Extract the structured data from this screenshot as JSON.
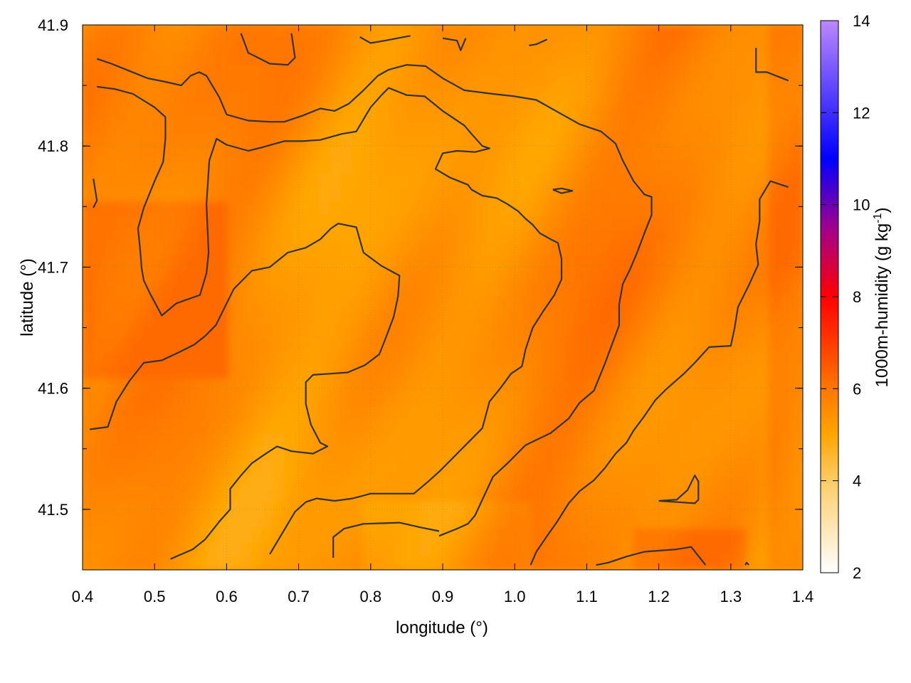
{
  "chart_data": {
    "type": "heatmap",
    "xlabel": "longitude (°)",
    "ylabel": "latitude (°)",
    "colorbar_label": "1000m-humidity (g kg",
    "colorbar_label_sup": "-1",
    "colorbar_label_end": ")",
    "xlim": [
      0.4,
      1.4
    ],
    "ylim": [
      41.45,
      41.9
    ],
    "x_ticks": [
      0.4,
      0.5,
      0.6,
      0.7,
      0.8,
      0.9,
      1.0,
      1.1,
      1.2,
      1.3,
      1.4
    ],
    "x_tick_labels": [
      "0.4",
      "0.5",
      "0.6",
      "0.7",
      "0.8",
      "0.9",
      "1.0",
      "1.1",
      "1.2",
      "1.3",
      "1.4"
    ],
    "y_ticks": [
      41.5,
      41.6,
      41.7,
      41.8,
      41.9
    ],
    "y_tick_labels": [
      "41.5",
      "41.6",
      "41.7",
      "41.8",
      "41.9"
    ],
    "cbar_range": [
      2,
      14
    ],
    "cbar_ticks": [
      2,
      4,
      6,
      8,
      10,
      12,
      14
    ],
    "cbar_tick_labels": [
      "2",
      "4",
      "6",
      "8",
      "10",
      "12",
      "14"
    ],
    "colormap": [
      {
        "v": 2,
        "color": "#ffffff"
      },
      {
        "v": 4,
        "color": "#ffcc66"
      },
      {
        "v": 5,
        "color": "#ffa500"
      },
      {
        "v": 6,
        "color": "#ff7700"
      },
      {
        "v": 8,
        "color": "#ff0000"
      },
      {
        "v": 9.5,
        "color": "#a0008c"
      },
      {
        "v": 11,
        "color": "#0000ff"
      },
      {
        "v": 14,
        "color": "#bb88ff"
      }
    ],
    "field_range": [
      4.8,
      6.2
    ],
    "grid": true,
    "contour_color": "#333333",
    "contours": [
      [
        [
          0.42,
          41.872
        ],
        [
          0.44,
          41.868
        ],
        [
          0.465,
          41.862
        ],
        [
          0.49,
          41.856
        ],
        [
          0.515,
          41.853
        ],
        [
          0.537,
          41.85
        ],
        [
          0.55,
          41.858
        ],
        [
          0.562,
          41.861
        ],
        [
          0.572,
          41.858
        ],
        [
          0.59,
          41.84
        ],
        [
          0.6,
          41.826
        ],
        [
          0.63,
          41.821
        ],
        [
          0.66,
          41.82
        ],
        [
          0.68,
          41.82
        ],
        [
          0.705,
          41.825
        ],
        [
          0.73,
          41.831
        ],
        [
          0.75,
          41.829
        ],
        [
          0.77,
          41.835
        ],
        [
          0.79,
          41.846
        ],
        [
          0.81,
          41.858
        ],
        [
          0.825,
          41.863
        ],
        [
          0.85,
          41.867
        ],
        [
          0.876,
          41.866
        ],
        [
          0.9,
          41.856
        ],
        [
          0.93,
          41.846
        ],
        [
          0.97,
          41.843
        ],
        [
          1.0,
          41.841
        ],
        [
          1.03,
          41.838
        ],
        [
          1.06,
          41.828
        ],
        [
          1.09,
          41.818
        ],
        [
          1.12,
          41.812
        ],
        [
          1.14,
          41.802
        ],
        [
          1.15,
          41.788
        ],
        [
          1.165,
          41.771
        ],
        [
          1.18,
          41.76
        ],
        [
          1.19,
          41.758
        ],
        [
          1.19,
          41.743
        ],
        [
          1.18,
          41.728
        ],
        [
          1.17,
          41.712
        ],
        [
          1.16,
          41.698
        ],
        [
          1.15,
          41.686
        ],
        [
          1.145,
          41.669
        ],
        [
          1.145,
          41.652
        ],
        [
          1.125,
          41.62
        ],
        [
          1.11,
          41.598
        ],
        [
          1.09,
          41.588
        ],
        [
          1.075,
          41.575
        ],
        [
          1.05,
          41.563
        ],
        [
          1.015,
          41.553
        ],
        [
          0.99,
          41.538
        ],
        [
          0.97,
          41.527
        ],
        [
          0.945,
          41.495
        ],
        [
          0.935,
          41.488
        ],
        [
          0.92,
          41.484
        ],
        [
          0.895,
          41.478
        ]
      ],
      [
        [
          0.42,
          41.849
        ],
        [
          0.445,
          41.847
        ],
        [
          0.47,
          41.843
        ],
        [
          0.5,
          41.832
        ],
        [
          0.515,
          41.824
        ],
        [
          0.515,
          41.806
        ],
        [
          0.512,
          41.787
        ],
        [
          0.5,
          41.771
        ],
        [
          0.485,
          41.749
        ],
        [
          0.477,
          41.732
        ],
        [
          0.48,
          41.714
        ],
        [
          0.482,
          41.699
        ],
        [
          0.485,
          41.689
        ],
        [
          0.493,
          41.679
        ],
        [
          0.51,
          41.66
        ],
        [
          0.53,
          41.67
        ],
        [
          0.563,
          41.677
        ],
        [
          0.572,
          41.695
        ],
        [
          0.575,
          41.712
        ],
        [
          0.572,
          41.752
        ],
        [
          0.576,
          41.788
        ],
        [
          0.586,
          41.806
        ],
        [
          0.6,
          41.801
        ],
        [
          0.63,
          41.796
        ],
        [
          0.65,
          41.799
        ],
        [
          0.68,
          41.804
        ],
        [
          0.705,
          41.804
        ],
        [
          0.73,
          41.805
        ],
        [
          0.76,
          41.81
        ],
        [
          0.78,
          41.812
        ],
        [
          0.795,
          41.827
        ],
        [
          0.8,
          41.832
        ],
        [
          0.815,
          41.842
        ],
        [
          0.825,
          41.848
        ],
        [
          0.85,
          41.842
        ],
        [
          0.875,
          41.841
        ],
        [
          0.9,
          41.829
        ],
        [
          0.925,
          41.819
        ],
        [
          0.93,
          41.817
        ],
        [
          0.94,
          41.81
        ],
        [
          0.955,
          41.8
        ],
        [
          0.965,
          41.798
        ],
        [
          0.945,
          41.795
        ],
        [
          0.92,
          41.796
        ],
        [
          0.9,
          41.794
        ],
        [
          0.89,
          41.781
        ],
        [
          0.91,
          41.774
        ],
        [
          0.935,
          41.768
        ],
        [
          0.94,
          41.764
        ],
        [
          0.955,
          41.759
        ],
        [
          0.975,
          41.757
        ],
        [
          0.99,
          41.752
        ],
        [
          1.005,
          41.746
        ],
        [
          1.015,
          41.74
        ],
        [
          1.025,
          41.735
        ],
        [
          1.035,
          41.728
        ],
        [
          1.05,
          41.723
        ],
        [
          1.06,
          41.72
        ],
        [
          1.065,
          41.707
        ],
        [
          1.065,
          41.69
        ],
        [
          1.055,
          41.677
        ],
        [
          1.04,
          41.664
        ],
        [
          1.025,
          41.65
        ],
        [
          1.015,
          41.632
        ],
        [
          1.01,
          41.618
        ],
        [
          0.995,
          41.612
        ],
        [
          0.98,
          41.6
        ],
        [
          0.965,
          41.589
        ],
        [
          0.955,
          41.567
        ],
        [
          0.935,
          41.555
        ],
        [
          0.915,
          41.543
        ],
        [
          0.895,
          41.531
        ],
        [
          0.88,
          41.523
        ],
        [
          0.86,
          41.513
        ],
        [
          0.84,
          41.513
        ],
        [
          0.8,
          41.513
        ],
        [
          0.775,
          41.509
        ],
        [
          0.75,
          41.507
        ],
        [
          0.725,
          41.509
        ],
        [
          0.71,
          41.506
        ],
        [
          0.695,
          41.498
        ],
        [
          0.68,
          41.483
        ],
        [
          0.66,
          41.463
        ]
      ],
      [
        [
          0.41,
          41.566
        ],
        [
          0.435,
          41.568
        ],
        [
          0.447,
          41.589
        ],
        [
          0.465,
          41.606
        ],
        [
          0.485,
          41.621
        ],
        [
          0.51,
          41.623
        ],
        [
          0.535,
          41.63
        ],
        [
          0.555,
          41.636
        ],
        [
          0.57,
          41.643
        ],
        [
          0.585,
          41.652
        ],
        [
          0.6,
          41.67
        ],
        [
          0.61,
          41.682
        ],
        [
          0.635,
          41.697
        ],
        [
          0.66,
          41.7
        ],
        [
          0.685,
          41.712
        ],
        [
          0.71,
          41.716
        ],
        [
          0.73,
          41.723
        ],
        [
          0.745,
          41.732
        ],
        [
          0.755,
          41.736
        ],
        [
          0.78,
          41.733
        ],
        [
          0.79,
          41.712
        ],
        [
          0.815,
          41.701
        ],
        [
          0.84,
          41.693
        ],
        [
          0.838,
          41.676
        ],
        [
          0.832,
          41.659
        ],
        [
          0.82,
          41.64
        ],
        [
          0.812,
          41.628
        ],
        [
          0.792,
          41.619
        ],
        [
          0.768,
          41.613
        ],
        [
          0.745,
          41.612
        ],
        [
          0.72,
          41.611
        ],
        [
          0.71,
          41.605
        ],
        [
          0.71,
          41.587
        ],
        [
          0.717,
          41.57
        ],
        [
          0.73,
          41.555
        ],
        [
          0.74,
          41.552
        ],
        [
          0.72,
          41.546
        ],
        [
          0.69,
          41.548
        ],
        [
          0.67,
          41.552
        ],
        [
          0.652,
          41.545
        ],
        [
          0.635,
          41.538
        ],
        [
          0.62,
          41.528
        ],
        [
          0.605,
          41.517
        ],
        [
          0.605,
          41.5
        ],
        [
          0.59,
          41.49
        ],
        [
          0.57,
          41.475
        ],
        [
          0.553,
          41.467
        ],
        [
          0.522,
          41.459
        ]
      ],
      [
        [
          0.748,
          41.46
        ],
        [
          0.748,
          41.477
        ],
        [
          0.763,
          41.484
        ],
        [
          0.79,
          41.488
        ],
        [
          0.84,
          41.489
        ],
        [
          0.87,
          41.485
        ],
        [
          0.895,
          41.482
        ]
      ],
      [
        [
          1.022,
          41.454
        ],
        [
          1.03,
          41.465
        ],
        [
          1.045,
          41.478
        ],
        [
          1.058,
          41.489
        ],
        [
          1.075,
          41.505
        ],
        [
          1.09,
          41.515
        ],
        [
          1.11,
          41.524
        ],
        [
          1.125,
          41.534
        ],
        [
          1.14,
          41.546
        ],
        [
          1.155,
          41.555
        ],
        [
          1.165,
          41.565
        ],
        [
          1.18,
          41.577
        ],
        [
          1.195,
          41.59
        ],
        [
          1.21,
          41.599
        ],
        [
          1.235,
          41.612
        ],
        [
          1.25,
          41.621
        ],
        [
          1.27,
          41.634
        ],
        [
          1.3,
          41.635
        ],
        [
          1.305,
          41.649
        ],
        [
          1.31,
          41.667
        ],
        [
          1.325,
          41.685
        ],
        [
          1.338,
          41.702
        ],
        [
          1.335,
          41.719
        ],
        [
          1.34,
          41.738
        ],
        [
          1.34,
          41.756
        ],
        [
          1.355,
          41.771
        ],
        [
          1.38,
          41.766
        ]
      ],
      [
        [
          1.113,
          41.454
        ],
        [
          1.13,
          41.456
        ],
        [
          1.155,
          41.461
        ],
        [
          1.18,
          41.465
        ],
        [
          1.225,
          41.467
        ],
        [
          1.245,
          41.469
        ],
        [
          1.265,
          41.454
        ]
      ],
      [
        [
          1.2,
          41.507
        ],
        [
          1.225,
          41.506
        ],
        [
          1.25,
          41.505
        ],
        [
          1.255,
          41.508
        ],
        [
          1.255,
          41.523
        ],
        [
          1.25,
          41.528
        ],
        [
          1.24,
          41.516
        ],
        [
          1.225,
          41.508
        ],
        [
          1.2,
          41.507
        ]
      ],
      [
        [
          0.62,
          41.893
        ],
        [
          0.63,
          41.877
        ],
        [
          0.66,
          41.868
        ],
        [
          0.685,
          41.867
        ],
        [
          0.695,
          41.873
        ],
        [
          0.69,
          41.893
        ]
      ],
      [
        [
          0.785,
          41.89
        ],
        [
          0.8,
          41.885
        ],
        [
          0.82,
          41.887
        ],
        [
          0.855,
          41.891
        ]
      ],
      [
        [
          0.9,
          41.889
        ],
        [
          0.92,
          41.887
        ],
        [
          0.925,
          41.879
        ],
        [
          0.932,
          41.889
        ]
      ],
      [
        [
          1.02,
          41.883
        ],
        [
          1.03,
          41.884
        ],
        [
          1.045,
          41.888
        ]
      ],
      [
        [
          1.335,
          41.881
        ],
        [
          1.335,
          41.861
        ],
        [
          1.35,
          41.861
        ],
        [
          1.38,
          41.854
        ]
      ],
      [
        [
          0.415,
          41.749
        ],
        [
          0.42,
          41.755
        ],
        [
          0.415,
          41.773
        ]
      ],
      [
        [
          1.053,
          41.764
        ],
        [
          1.065,
          41.765
        ],
        [
          1.08,
          41.763
        ],
        [
          1.065,
          41.761
        ],
        [
          1.053,
          41.764
        ]
      ],
      [
        [
          1.32,
          41.454
        ],
        [
          1.322,
          41.456
        ],
        [
          1.325,
          41.454
        ]
      ]
    ]
  }
}
